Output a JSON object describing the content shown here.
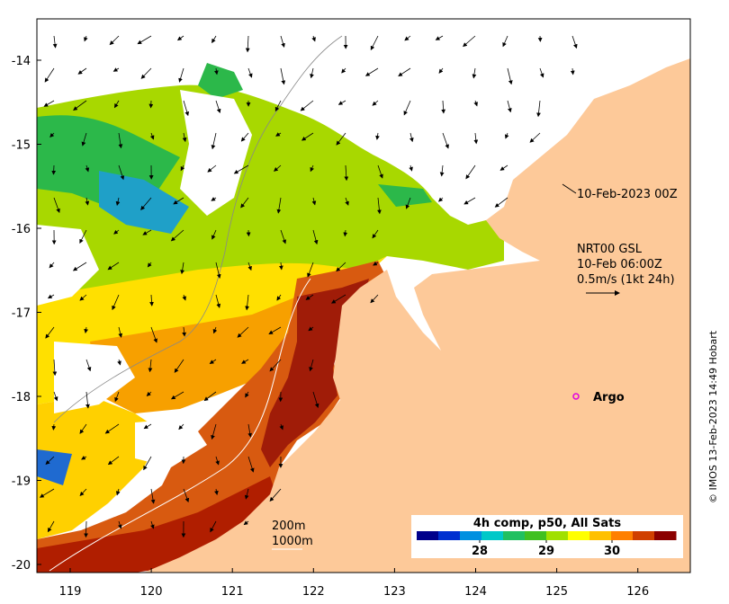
{
  "map": {
    "x_ticks": [
      "119",
      "120",
      "121",
      "122",
      "123",
      "124",
      "125",
      "126"
    ],
    "y_ticks": [
      "-14",
      "-15",
      "-16",
      "-17",
      "-18",
      "-19",
      "-20"
    ],
    "timestamp_label": "10-Feb-2023 00Z",
    "current_legend": {
      "line1": "NRT00 GSL",
      "line2": "10-Feb 06:00Z",
      "line3": "0.5m/s (1kt 24h)"
    },
    "argo_label": "Argo",
    "isobaths": {
      "shallow": "200m",
      "deep": "1000m"
    },
    "colorbar": {
      "title": "4h comp, p50, All Sats",
      "tick_labels": [
        "28",
        "29",
        "30"
      ],
      "colors": [
        "#00008b",
        "#0030d0",
        "#0090e0",
        "#00c8c8",
        "#20c060",
        "#40c020",
        "#a0e000",
        "#ffff00",
        "#ffc000",
        "#ff8000",
        "#d04000",
        "#8b0000"
      ]
    },
    "land_color": "#fdc999",
    "credit": "© IMOS 13-Feb-2023 14:49 Hobart"
  }
}
